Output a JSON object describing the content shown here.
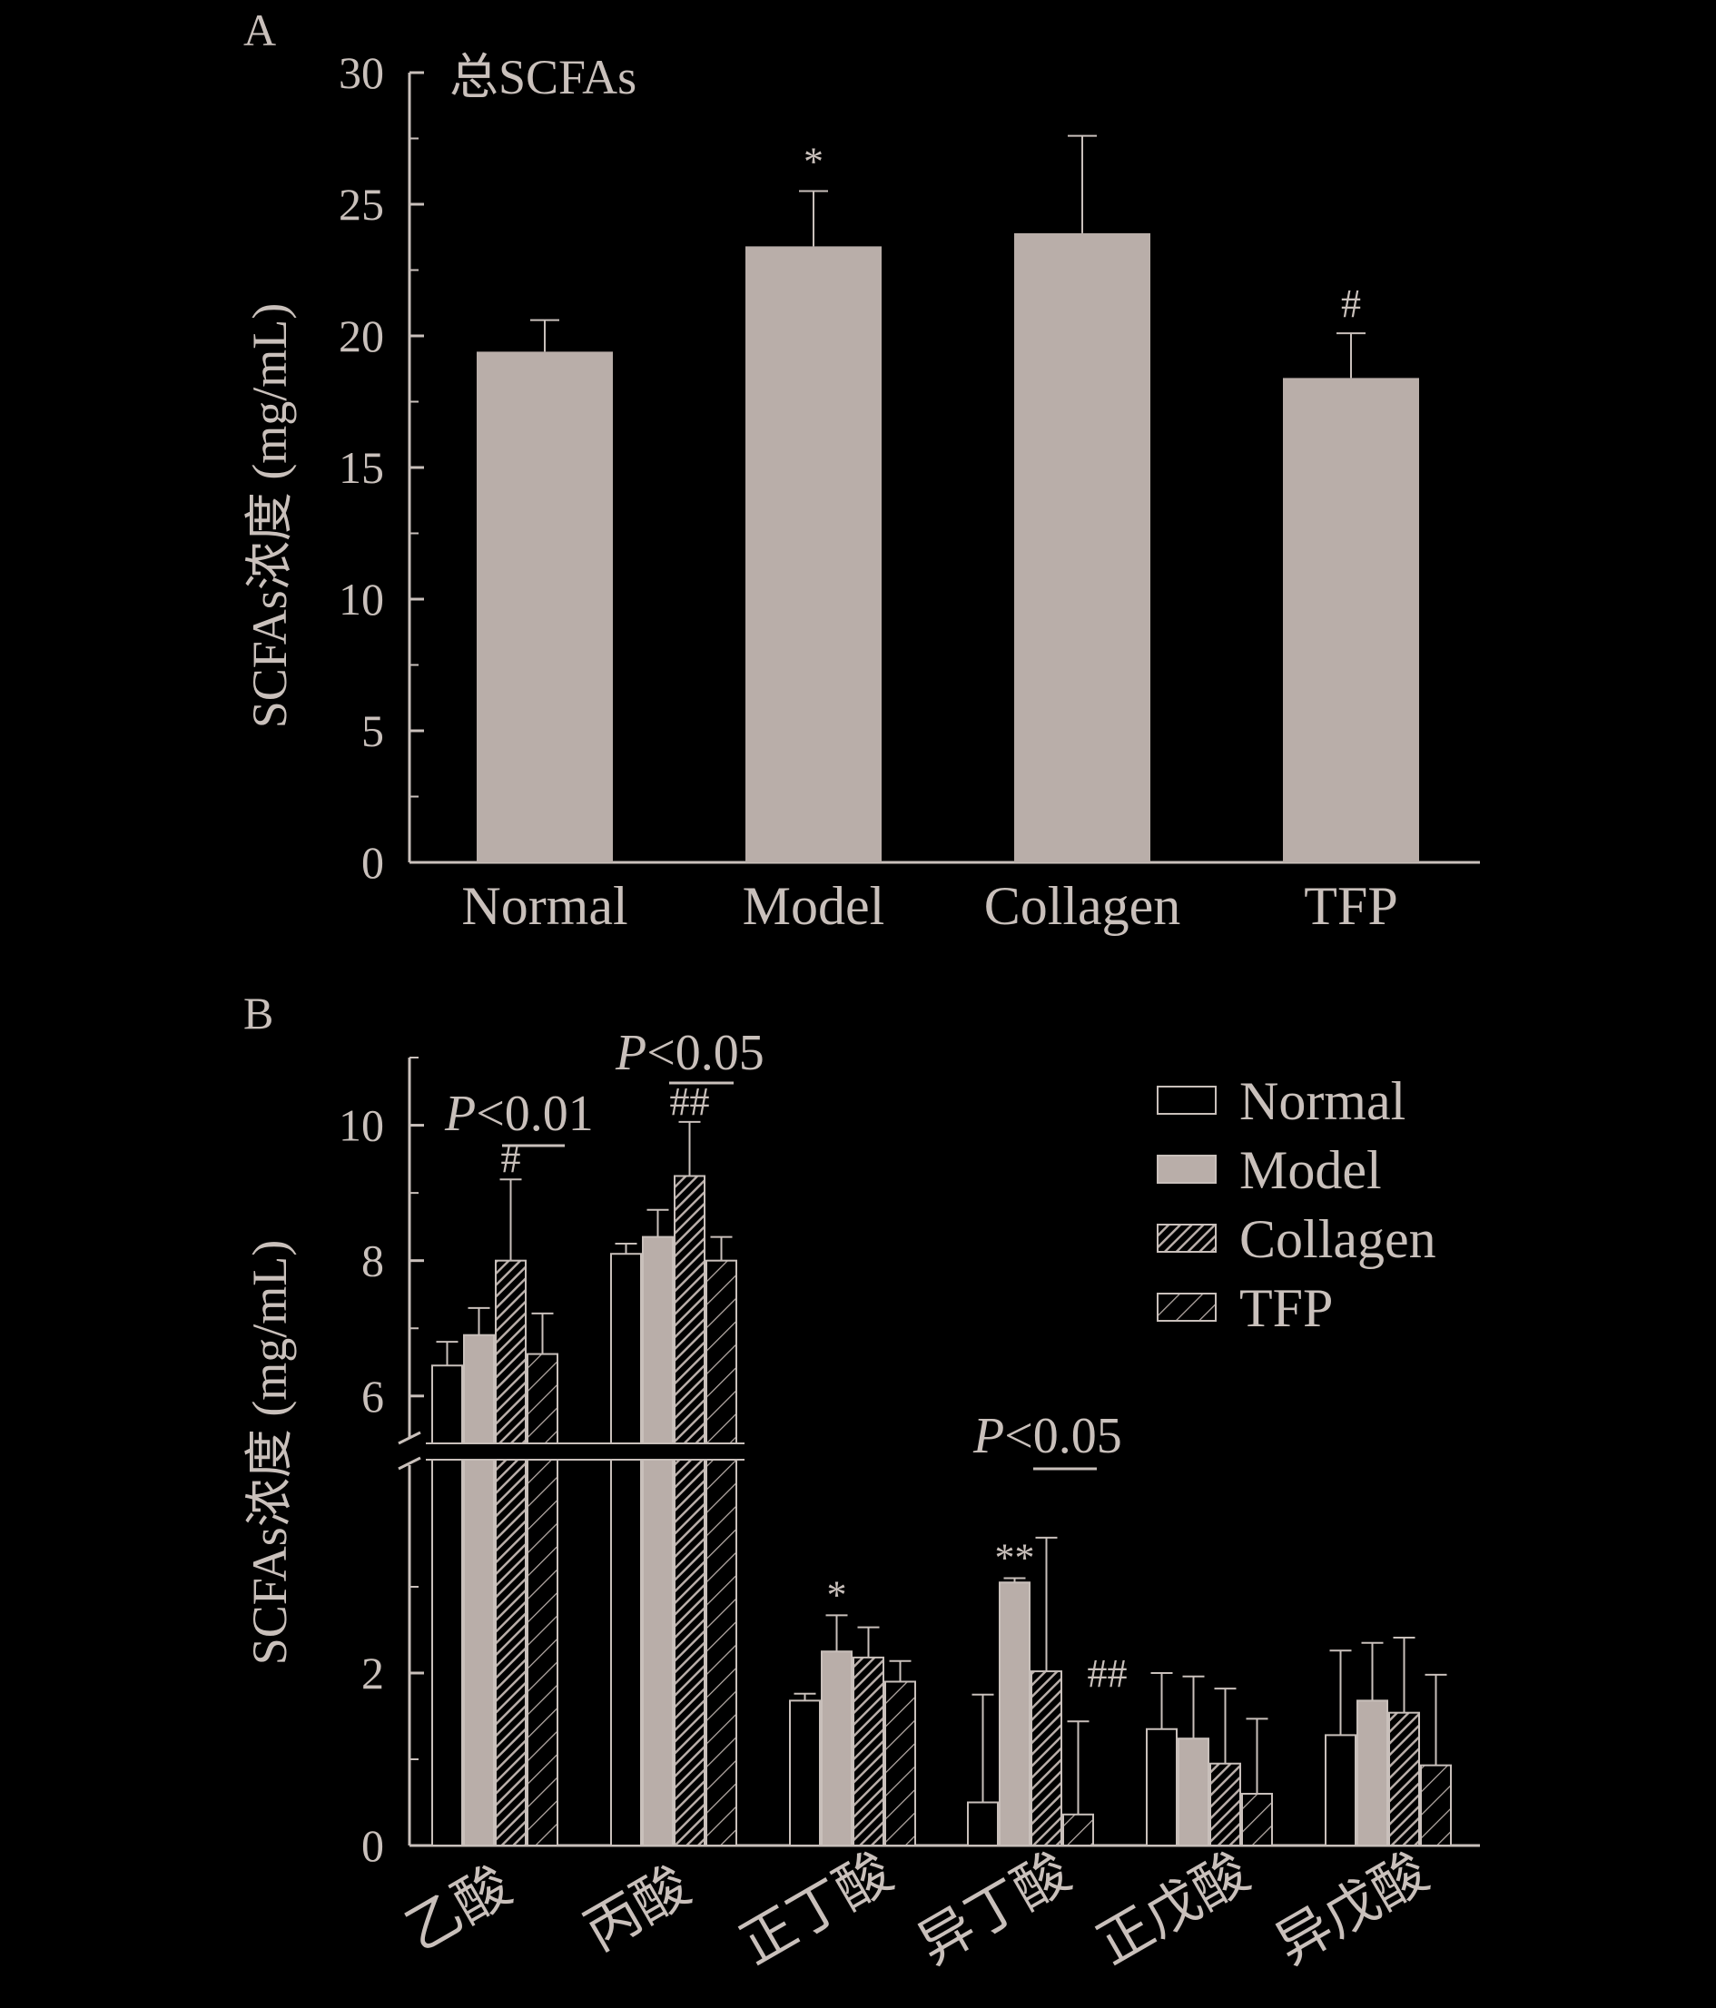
{
  "chart_data": [
    {
      "panel": "A",
      "type": "bar",
      "title": "总SCFAs",
      "ylabel": "SCFAs浓度 (mg/mL)",
      "ylim": [
        0,
        30
      ],
      "yticks": [
        0,
        5,
        10,
        15,
        20,
        25,
        30
      ],
      "categories": [
        "Normal",
        "Model",
        "Collagen",
        "TFP"
      ],
      "values": [
        19.4,
        23.4,
        23.9,
        18.4
      ],
      "errors": [
        1.2,
        2.1,
        3.7,
        1.7
      ],
      "annotations": [
        "",
        "*",
        "",
        "#"
      ]
    },
    {
      "panel": "B",
      "type": "bar",
      "ylabel": "SCFAs浓度 (mg/mL)",
      "yticks": [
        0,
        2,
        6,
        8,
        10
      ],
      "axis_break": {
        "lower_range": [
          0,
          4.4
        ],
        "upper_range": [
          5.3,
          11
        ]
      },
      "categories": [
        "乙酸",
        "丙酸",
        "正丁酸",
        "异丁酸",
        "正戊酸",
        "异戊酸"
      ],
      "series": [
        {
          "name": "Normal",
          "values": [
            6.45,
            8.1,
            1.68,
            0.5,
            1.35,
            1.28
          ],
          "errors": [
            0.35,
            0.15,
            0.08,
            1.25,
            0.65,
            0.98
          ]
        },
        {
          "name": "Model",
          "values": [
            6.9,
            8.35,
            2.25,
            3.05,
            1.24,
            1.68
          ],
          "errors": [
            0.4,
            0.4,
            0.42,
            0.05,
            0.72,
            0.67
          ]
        },
        {
          "name": "Collagen",
          "values": [
            8.0,
            9.25,
            2.18,
            2.02,
            0.95,
            1.54
          ],
          "errors": [
            1.2,
            0.8,
            0.35,
            1.55,
            0.87,
            0.87
          ]
        },
        {
          "name": "TFP",
          "values": [
            6.62,
            8.0,
            1.9,
            0.36,
            0.6,
            0.93
          ],
          "errors": [
            0.6,
            0.35,
            0.24,
            1.08,
            0.87,
            1.05
          ]
        }
      ],
      "annotations": [
        {
          "category": "乙酸",
          "series": "Collagen",
          "mark": "#"
        },
        {
          "category": "丙酸",
          "series": "Collagen",
          "mark": "##"
        },
        {
          "category": "正丁酸",
          "series": "Model",
          "mark": "*"
        },
        {
          "category": "异丁酸",
          "series": "Model",
          "mark": "**"
        },
        {
          "category": "异丁酸",
          "series": "TFP",
          "mark": "##"
        }
      ],
      "comparisons": [
        {
          "category": "乙酸",
          "text_p": "P",
          "text_rest": "<0.01"
        },
        {
          "category": "丙酸",
          "text_p": "P",
          "text_rest": "<0.05"
        },
        {
          "category": "异丁酸",
          "text_p": "P",
          "text_rest": "<0.05"
        }
      ],
      "legend_position": "top-right"
    }
  ],
  "palette": {
    "background": "#000000",
    "fill": "#b9aea9",
    "stroke": "#c9c0bb"
  }
}
